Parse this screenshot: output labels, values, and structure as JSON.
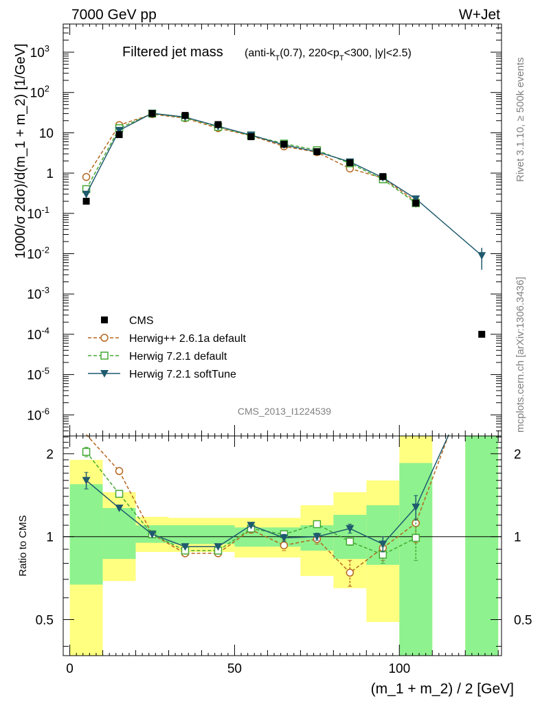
{
  "header": {
    "left": "7000 GeV pp",
    "right": "W+Jet"
  },
  "side_labels": {
    "rivet": "Rivet 3.1.10, ≥ 500k events",
    "mcplots": "mcplots.cern.ch [arXiv:1306.3436]"
  },
  "analysis_id": "CMS_2013_I1224539",
  "chart_data": [
    {
      "type": "line",
      "panel": "main",
      "title": "Filtered jet mass",
      "subtitle_parts": [
        "(anti-k",
        "T",
        "(0.7), 220<p",
        "T",
        "<300, |y|<2.5)"
      ],
      "ylabel": "1000/σ 2dσ)/d(m_1 + m_2) [1/GeV]",
      "xlabel": "",
      "yscale": "log",
      "ylim": [
        3e-07,
        5000
      ],
      "xlim": [
        -2,
        131
      ],
      "y_tick_labels": [
        {
          "b": "10",
          "e": "-6"
        },
        {
          "b": "10",
          "e": "-5"
        },
        {
          "b": "10",
          "e": "-4"
        },
        {
          "b": "10",
          "e": "-3"
        },
        {
          "b": "10",
          "e": "-2"
        },
        {
          "b": "10",
          "e": "-1"
        },
        {
          "b": "1",
          "e": ""
        },
        {
          "b": "10",
          "e": ""
        },
        {
          "b": "10",
          "e": "2"
        },
        {
          "b": "10",
          "e": "3"
        }
      ],
      "legend_position": "middle-left",
      "series": [
        {
          "name": "CMS",
          "color": "#000000",
          "marker": "filled-square",
          "x": [
            5,
            15,
            25,
            35,
            45,
            55,
            65,
            75,
            85,
            95,
            105,
            125
          ],
          "y": [
            0.2,
            9,
            30,
            27,
            16,
            8,
            5.2,
            3.4,
            1.8,
            0.82,
            0.18,
            0.0001
          ]
        },
        {
          "name": "Herwig++ 2.6.1a default",
          "color": "#b5651d",
          "marker": "open-circle",
          "line": "dashed",
          "x": [
            5,
            15,
            25,
            35,
            45,
            55,
            65,
            75,
            85,
            95,
            105
          ],
          "y": [
            0.8,
            15.5,
            29,
            23,
            13,
            8.5,
            4.6,
            3.3,
            1.3,
            0.75,
            0.2
          ],
          "err": [
            0,
            0,
            0,
            0,
            0,
            0,
            0,
            0,
            0,
            0.06,
            0.04
          ]
        },
        {
          "name": "Herwig 7.2.1 default",
          "color": "#44a832",
          "marker": "open-square",
          "line": "dashed",
          "x": [
            5,
            15,
            25,
            35,
            45,
            55,
            65,
            75,
            85,
            95,
            105
          ],
          "y": [
            0.4,
            13,
            30,
            24,
            14,
            8.6,
            5.4,
            3.7,
            1.75,
            0.7,
            0.18
          ],
          "err": [
            0,
            0,
            0,
            0,
            0,
            0,
            0,
            0,
            0,
            0.05,
            0.04
          ]
        },
        {
          "name": "Herwig 7.2.1 softTune",
          "color": "#1f5a6e",
          "marker": "filled-triangle-down",
          "line": "solid",
          "x": [
            5,
            15,
            25,
            35,
            45,
            55,
            65,
            75,
            85,
            95,
            105,
            125
          ],
          "y": [
            0.3,
            11.5,
            30.5,
            24.5,
            14.5,
            8.8,
            5,
            3.4,
            1.9,
            0.77,
            0.23,
            0.009
          ],
          "err": [
            0,
            0,
            0,
            0,
            0,
            0,
            0,
            0,
            0,
            0.05,
            0.03,
            0.005
          ]
        }
      ]
    },
    {
      "type": "line",
      "panel": "ratio",
      "ylabel": "Ratio to CMS",
      "xlabel": "(m_1 + m_2) / 2 [GeV]",
      "yscale": "log",
      "ylim": [
        0.37,
        2.32
      ],
      "xlim": [
        -2,
        131
      ],
      "x_ticks": [
        0,
        50,
        100
      ],
      "y_ticks": [
        0.5,
        1,
        2
      ],
      "reference_line": 1,
      "bands": [
        {
          "x0": 0,
          "x1": 10,
          "inner": [
            0.67,
            1.55
          ],
          "outer": [
            0.35,
            1.9
          ]
        },
        {
          "x0": 10,
          "x1": 20,
          "inner": [
            0.83,
            1.27
          ],
          "outer": [
            0.69,
            1.45
          ]
        },
        {
          "x0": 20,
          "x1": 30,
          "inner": [
            0.95,
            1.1
          ],
          "outer": [
            0.88,
            1.18
          ]
        },
        {
          "x0": 30,
          "x1": 40,
          "inner": [
            0.94,
            1.1
          ],
          "outer": [
            0.88,
            1.17
          ]
        },
        {
          "x0": 40,
          "x1": 50,
          "inner": [
            0.94,
            1.1
          ],
          "outer": [
            0.88,
            1.17
          ]
        },
        {
          "x0": 50,
          "x1": 60,
          "inner": [
            0.92,
            1.08
          ],
          "outer": [
            0.84,
            1.17
          ]
        },
        {
          "x0": 60,
          "x1": 70,
          "inner": [
            0.92,
            1.08
          ],
          "outer": [
            0.84,
            1.17
          ]
        },
        {
          "x0": 70,
          "x1": 80,
          "inner": [
            0.89,
            1.1
          ],
          "outer": [
            0.72,
            1.3
          ]
        },
        {
          "x0": 80,
          "x1": 90,
          "inner": [
            0.83,
            1.2
          ],
          "outer": [
            0.65,
            1.45
          ]
        },
        {
          "x0": 90,
          "x1": 100,
          "inner": [
            0.79,
            1.3
          ],
          "outer": [
            0.49,
            1.6
          ]
        },
        {
          "x0": 100,
          "x1": 110,
          "inner": [
            0.3,
            1.85
          ],
          "outer": [
            0.3,
            2.6
          ]
        },
        {
          "x0": 120,
          "x1": 130,
          "inner": [
            0.3,
            3.0
          ],
          "outer": [
            0.3,
            3.0
          ]
        }
      ],
      "series": [
        {
          "name": "Herwig++ 2.6.1a default",
          "color": "#b5651d",
          "x": [
            5,
            15,
            25,
            35,
            45,
            55,
            65,
            75,
            85,
            95,
            105,
            115
          ],
          "y": [
            4.0,
            1.73,
            1.02,
            0.87,
            0.87,
            1.06,
            0.93,
            0.98,
            0.74,
            0.91,
            1.12,
            6.0
          ],
          "err": [
            0,
            0,
            0,
            0,
            0,
            0,
            0.04,
            0.04,
            0.08,
            0.09,
            0.17,
            0
          ]
        },
        {
          "name": "Herwig 7.2.1 default",
          "color": "#44a832",
          "x": [
            5,
            15,
            25,
            35,
            45,
            55,
            65,
            75,
            85,
            95,
            105
          ],
          "y": [
            2.03,
            1.43,
            1.02,
            0.89,
            0.89,
            1.07,
            1.02,
            1.11,
            0.96,
            0.86,
            0.99
          ],
          "err": [
            0.08,
            0,
            0,
            0,
            0,
            0,
            0.03,
            0.03,
            0.03,
            0.06,
            0.17
          ]
        },
        {
          "name": "Herwig 7.2.1 softTune",
          "color": "#1f5a6e",
          "x": [
            5,
            15,
            25,
            35,
            45,
            55,
            65,
            75,
            85,
            95,
            105,
            115
          ],
          "y": [
            1.6,
            1.27,
            1.02,
            0.92,
            0.92,
            1.1,
            0.99,
            1.0,
            1.07,
            0.94,
            1.28,
            6.0
          ],
          "err": [
            0.11,
            0,
            0,
            0,
            0,
            0,
            0.03,
            0.03,
            0.04,
            0.06,
            0.13,
            0
          ]
        }
      ]
    }
  ]
}
